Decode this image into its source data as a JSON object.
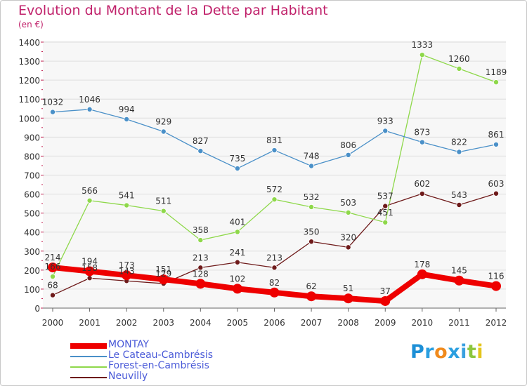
{
  "chart_data": {
    "type": "line",
    "title": "Evolution du Montant de la Dette par Habitant",
    "unit": "(en €)",
    "categories": [
      "2000",
      "2001",
      "2002",
      "2003",
      "2004",
      "2005",
      "2006",
      "2007",
      "2008",
      "2009",
      "2010",
      "2011",
      "2012"
    ],
    "ylim": [
      0,
      1400
    ],
    "yticks": [
      0,
      100,
      200,
      300,
      400,
      500,
      600,
      700,
      800,
      900,
      1000,
      1100,
      1200,
      1300,
      1400
    ],
    "grid": true,
    "legend_position": "bottom-left",
    "series": [
      {
        "name": "Neuvilly",
        "color": "#6e1a1a",
        "values": [
          68,
          158,
          143,
          129,
          213,
          241,
          213,
          350,
          320,
          537,
          602,
          543,
          603
        ],
        "thick": false
      },
      {
        "name": "Forest-en-Cambrésis",
        "color": "#8ed84a",
        "values": [
          166,
          566,
          541,
          511,
          358,
          401,
          572,
          532,
          503,
          451,
          1333,
          1260,
          1189
        ],
        "thick": false
      },
      {
        "name": "Le Cateau-Cambrésis",
        "color": "#4a90c8",
        "values": [
          1032,
          1046,
          994,
          929,
          827,
          735,
          831,
          748,
          806,
          933,
          873,
          822,
          861
        ],
        "thick": false
      },
      {
        "name": "MONTAY",
        "color": "#ee0000",
        "values": [
          214,
          194,
          173,
          151,
          128,
          102,
          82,
          62,
          51,
          37,
          178,
          145,
          116
        ],
        "thick": true
      }
    ],
    "legend_order": [
      "MONTAY",
      "Le Cateau-Cambrésis",
      "Forest-en-Cambrésis",
      "Neuvilly"
    ]
  },
  "brand": {
    "letters": [
      "P",
      "r",
      "o",
      "x",
      "i",
      "t",
      "i"
    ],
    "colors": [
      "#1c8fd6",
      "#2a9fe0",
      "#f08a1c",
      "#2a9fe0",
      "#3aa0e0",
      "#8cc63e",
      "#e4c51c"
    ]
  }
}
